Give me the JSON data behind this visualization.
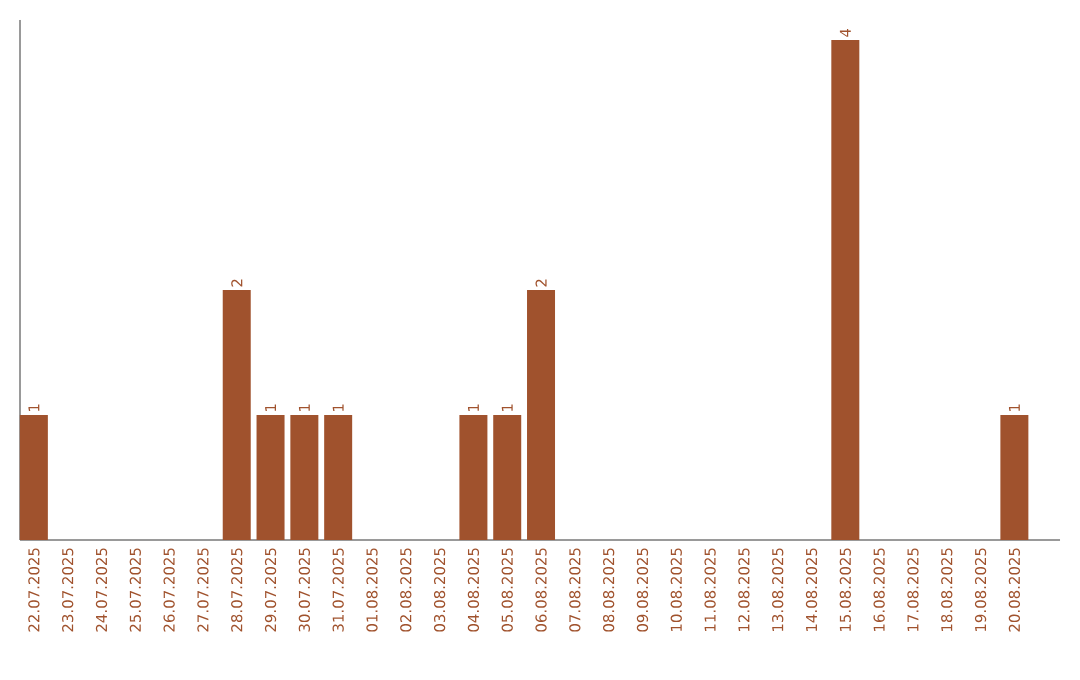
{
  "chart_data": {
    "type": "bar",
    "color": "#a0522d",
    "categories": [
      "22.07.2025",
      "23.07.2025",
      "24.07.2025",
      "25.07.2025",
      "26.07.2025",
      "27.07.2025",
      "28.07.2025",
      "29.07.2025",
      "30.07.2025",
      "31.07.2025",
      "01.08.2025",
      "02.08.2025",
      "03.08.2025",
      "04.08.2025",
      "05.08.2025",
      "06.08.2025",
      "07.08.2025",
      "08.08.2025",
      "09.08.2025",
      "10.08.2025",
      "11.08.2025",
      "12.08.2025",
      "13.08.2025",
      "14.08.2025",
      "15.08.2025",
      "16.08.2025",
      "17.08.2025",
      "18.08.2025",
      "19.08.2025",
      "20.08.2025"
    ],
    "values": [
      1,
      0,
      0,
      0,
      0,
      0,
      2,
      1,
      1,
      1,
      0,
      0,
      0,
      1,
      1,
      2,
      0,
      0,
      0,
      0,
      0,
      0,
      0,
      0,
      4,
      0,
      0,
      0,
      0,
      1
    ],
    "value_labels": [
      "1",
      null,
      null,
      null,
      null,
      null,
      "2",
      "1",
      "1",
      "1",
      null,
      null,
      null,
      "1",
      "1",
      "2",
      null,
      null,
      null,
      null,
      null,
      null,
      null,
      null,
      "4",
      null,
      null,
      null,
      null,
      "1"
    ]
  }
}
